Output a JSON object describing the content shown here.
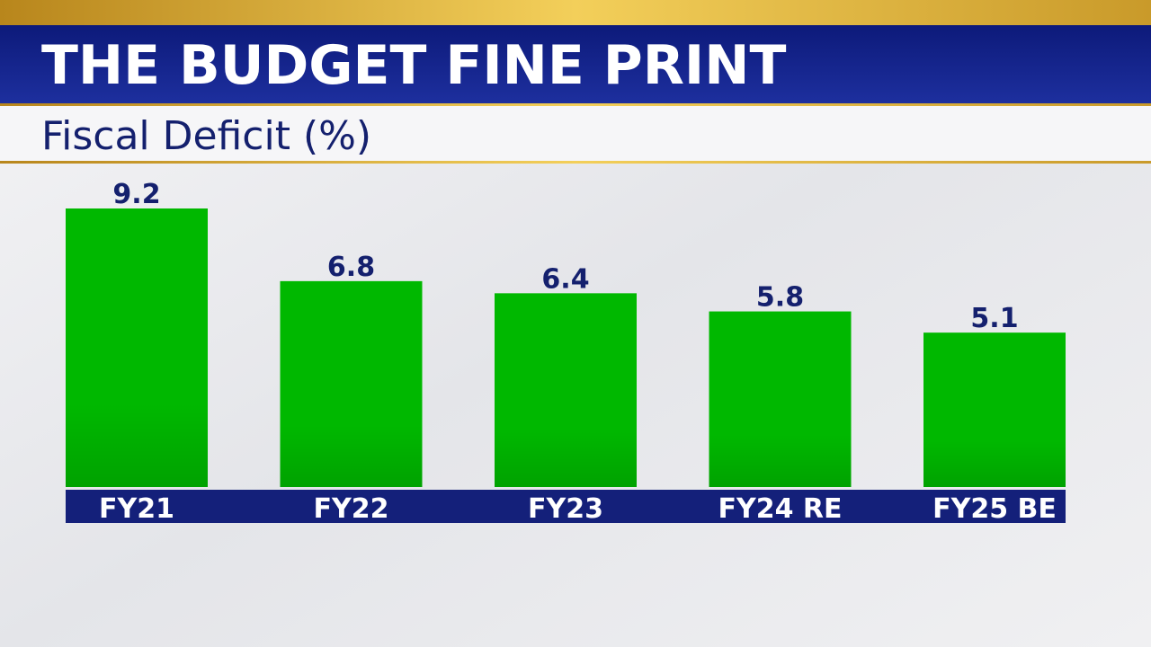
{
  "chart_data": {
    "type": "bar",
    "title": "THE BUDGET FINE PRINT",
    "subtitle": "Fiscal Deficit (%)",
    "categories": [
      "FY21",
      "FY22",
      "FY23",
      "FY24 RE",
      "FY25 BE"
    ],
    "values": [
      9.2,
      6.8,
      6.4,
      5.8,
      5.1
    ],
    "color": "#00b800"
  }
}
